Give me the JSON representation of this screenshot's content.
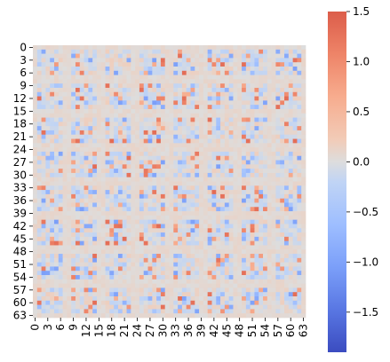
{
  "chart_data": {
    "type": "heatmap",
    "rows": 64,
    "cols": 64,
    "colormap": "coolwarm",
    "vmin": -1.9,
    "vmax": 1.5,
    "pattern": "8x8 blocks of 8x8 cells; near-zero background with sparse positive and negative cells",
    "x_tick_labels": [
      "0",
      "3",
      "6",
      "9",
      "12",
      "15",
      "18",
      "21",
      "24",
      "27",
      "30",
      "33",
      "36",
      "39",
      "42",
      "45",
      "48",
      "51",
      "54",
      "57",
      "60",
      "63"
    ],
    "y_tick_labels": [
      "0",
      "3",
      "6",
      "9",
      "12",
      "15",
      "18",
      "21",
      "24",
      "27",
      "30",
      "33",
      "36",
      "39",
      "42",
      "45",
      "48",
      "51",
      "54",
      "57",
      "60",
      "63"
    ],
    "colorbar_ticks": [
      "1.5",
      "1.0",
      "0.5",
      "0.0",
      "−0.5",
      "−1.0",
      "−1.5"
    ],
    "colorbar_tick_values": [
      1.5,
      1.0,
      0.5,
      0.0,
      -0.5,
      -1.0,
      -1.5
    ],
    "colors": {
      "min": "#3b4cc0",
      "mid": "#dddddd",
      "max": "#b40426",
      "background_cell": "#e1d8d2"
    }
  }
}
